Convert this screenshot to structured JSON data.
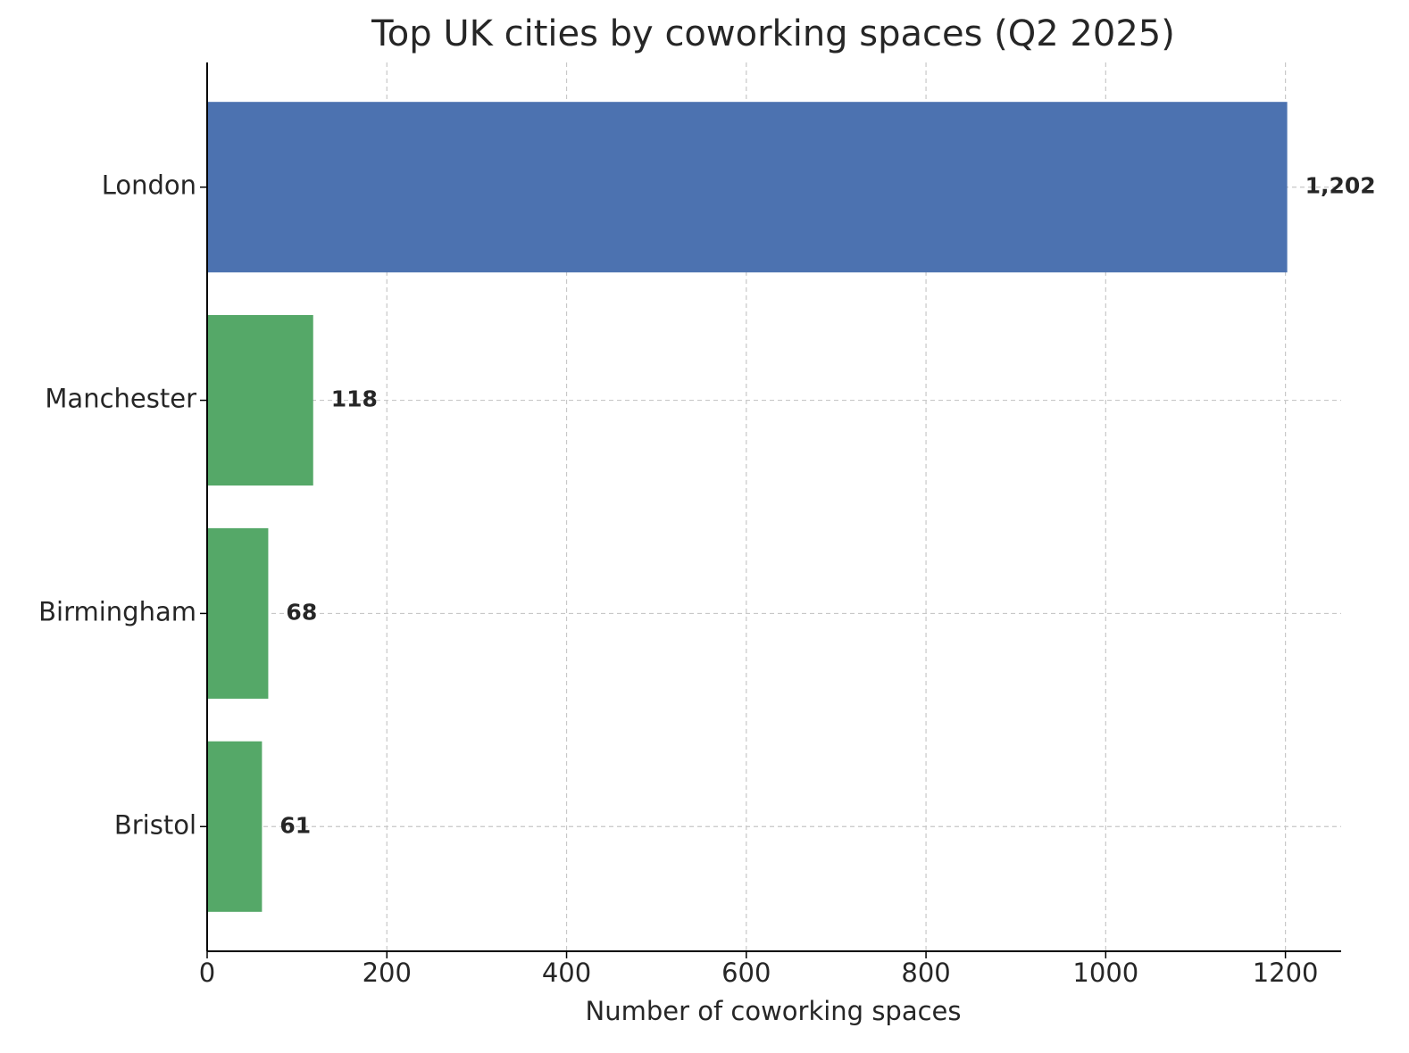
{
  "chart_data": {
    "type": "barh",
    "title": "Top UK cities by coworking spaces (Q2 2025)",
    "x_label": "Number of coworking spaces",
    "categories": [
      "London",
      "Manchester",
      "Birmingham",
      "Bristol"
    ],
    "values": [
      1202,
      118,
      68,
      61
    ],
    "value_labels": [
      "1,202",
      "118",
      "68",
      "61"
    ],
    "colors": [
      "#4c72b0",
      "#55a868",
      "#55a868",
      "#55a868"
    ],
    "xlim": [
      0,
      1262
    ],
    "xticks": [
      0,
      200,
      400,
      600,
      800,
      1000,
      1200
    ],
    "grid": true
  }
}
